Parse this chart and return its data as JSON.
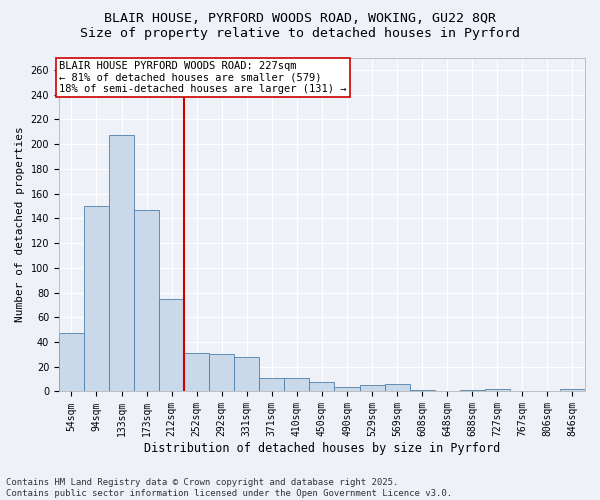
{
  "title1": "BLAIR HOUSE, PYRFORD WOODS ROAD, WOKING, GU22 8QR",
  "title2": "Size of property relative to detached houses in Pyrford",
  "xlabel": "Distribution of detached houses by size in Pyrford",
  "ylabel": "Number of detached properties",
  "categories": [
    "54sqm",
    "94sqm",
    "133sqm",
    "173sqm",
    "212sqm",
    "252sqm",
    "292sqm",
    "331sqm",
    "371sqm",
    "410sqm",
    "450sqm",
    "490sqm",
    "529sqm",
    "569sqm",
    "608sqm",
    "648sqm",
    "688sqm",
    "727sqm",
    "767sqm",
    "806sqm",
    "846sqm"
  ],
  "values": [
    47,
    150,
    207,
    147,
    75,
    31,
    30,
    28,
    11,
    11,
    8,
    4,
    5,
    6,
    1,
    0,
    1,
    2,
    0,
    0,
    2
  ],
  "bar_color": "#c9d9ea",
  "bar_edge_color": "#4f7faa",
  "vline_color": "#cc0000",
  "vline_x_index": 4,
  "annotation_text": "BLAIR HOUSE PYRFORD WOODS ROAD: 227sqm\n← 81% of detached houses are smaller (579)\n18% of semi-detached houses are larger (131) →",
  "annotation_box_color": "#ffffff",
  "annotation_box_edge": "#cc0000",
  "ylim": [
    0,
    270
  ],
  "yticks": [
    0,
    20,
    40,
    60,
    80,
    100,
    120,
    140,
    160,
    180,
    200,
    220,
    240,
    260
  ],
  "footer1": "Contains HM Land Registry data © Crown copyright and database right 2025.",
  "footer2": "Contains public sector information licensed under the Open Government Licence v3.0.",
  "bg_color": "#eef2f8",
  "title1_fontsize": 9.5,
  "title2_fontsize": 9.5,
  "xlabel_fontsize": 8.5,
  "ylabel_fontsize": 8,
  "tick_fontsize": 7,
  "annot_fontsize": 7.5,
  "footer_fontsize": 6.5
}
